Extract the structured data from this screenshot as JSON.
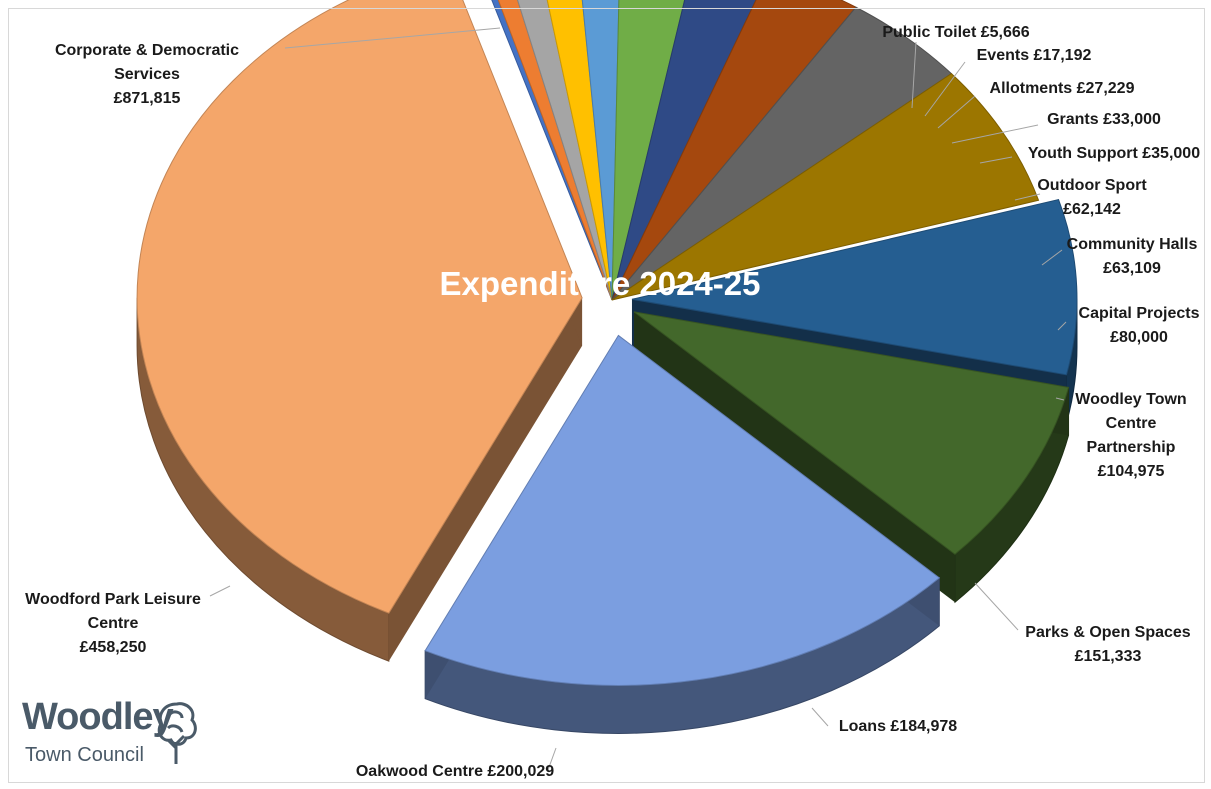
{
  "chart_data": {
    "type": "pie",
    "title": "Expenditure 2024-25",
    "currency": "£",
    "categories": [
      "Corporate & Democratic Services",
      "Public Toilet",
      "Events",
      "Allotments",
      "Grants",
      "Youth Support",
      "Outdoor Sport",
      "Community Halls",
      "Capital Projects",
      "Woodley Town Centre Partnership",
      "Parks & Open Spaces",
      "Loans",
      "Oakwood Centre",
      "Woodford Park Leisure Centre"
    ],
    "values": [
      871815,
      5666,
      17192,
      27229,
      33000,
      35000,
      62142,
      63109,
      80000,
      104975,
      151333,
      184978,
      200029,
      458250
    ],
    "colors": [
      "#f4a66a",
      "#4472c4",
      "#ed7d31",
      "#a5a5a5",
      "#ffc000",
      "#5b9bd5",
      "#70ad47",
      "#2f4a86",
      "#a5480e",
      "#646464",
      "#9c7600",
      "#255e91",
      "#43682b",
      "#7b9ee0"
    ],
    "labels": [
      [
        "Corporate & Democratic",
        "Services",
        "£871,815"
      ],
      [
        "Public Toilet £5,666"
      ],
      [
        "Events £17,192"
      ],
      [
        "Allotments £27,229"
      ],
      [
        "Grants £33,000"
      ],
      [
        "Youth Support £35,000"
      ],
      [
        "Outdoor Sport",
        "£62,142"
      ],
      [
        "Community Halls",
        "£63,109"
      ],
      [
        "Capital Projects",
        "£80,000"
      ],
      [
        "Woodley Town",
        "Centre",
        "Partnership",
        "£104,975"
      ],
      [
        "Parks & Open Spaces",
        "£151,333"
      ],
      [
        "Loans £184,978"
      ],
      [
        "Oakwood Centre £200,029"
      ],
      [
        "Woodford Park Leisure",
        "Centre",
        "£458,250"
      ]
    ]
  },
  "logo": {
    "name": "Woodley",
    "subtitle": "Town Council"
  }
}
